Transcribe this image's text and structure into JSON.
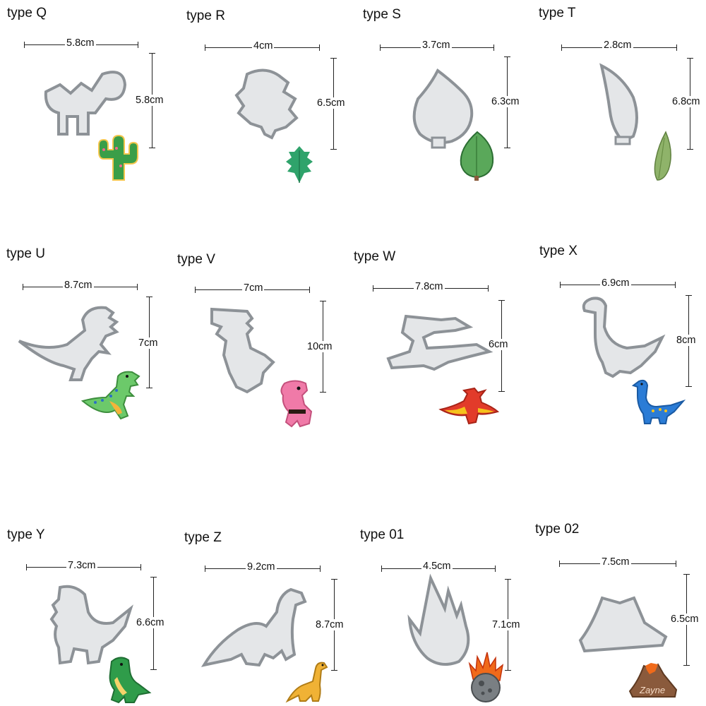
{
  "products": [
    {
      "id": "q",
      "type": "type Q",
      "width": "5.8cm",
      "height": "5.8cm",
      "icon": "cactus-icon"
    },
    {
      "id": "r",
      "type": "type R",
      "width": "4cm",
      "height": "6.5cm",
      "icon": "fern-leaf-icon"
    },
    {
      "id": "s",
      "type": "type S",
      "width": "3.7cm",
      "height": "6.3cm",
      "icon": "round-leaf-icon"
    },
    {
      "id": "t",
      "type": "type T",
      "width": "2.8cm",
      "height": "6.8cm",
      "icon": "slim-leaf-icon"
    },
    {
      "id": "u",
      "type": "type U",
      "width": "8.7cm",
      "height": "7cm",
      "icon": "t-rex-icon"
    },
    {
      "id": "v",
      "type": "type V",
      "width": "7cm",
      "height": "10cm",
      "icon": "pink-dino-icon"
    },
    {
      "id": "w",
      "type": "type W",
      "width": "7.8cm",
      "height": "6cm",
      "icon": "pterodactyl-icon"
    },
    {
      "id": "x",
      "type": "type X",
      "width": "6.9cm",
      "height": "8cm",
      "icon": "brontosaurus-icon"
    },
    {
      "id": "y",
      "type": "type Y",
      "width": "7.3cm",
      "height": "6.6cm",
      "icon": "green-dino-icon"
    },
    {
      "id": "z",
      "type": "type Z",
      "width": "9.2cm",
      "height": "8.7cm",
      "icon": "long-neck-dino-icon"
    },
    {
      "id": "01",
      "type": "type 01",
      "width": "4.5cm",
      "height": "7.1cm",
      "icon": "flaming-meteor-icon"
    },
    {
      "id": "02",
      "type": "type 02",
      "width": "7.5cm",
      "height": "6.5cm",
      "icon": "volcano-icon"
    }
  ],
  "volcano_cookie_text": "Zayne",
  "colors": {
    "steel": "#c9ccd0",
    "steel_dark": "#8d9297",
    "cactus_green": "#3a9e48",
    "fern_green": "#2fa36b",
    "leaf_green": "#5aa85a",
    "slim_leaf": "#8fb36a",
    "trex_green": "#6cc96a",
    "pink": "#f07aa8",
    "ptero_red": "#e23b2a",
    "ptero_yellow": "#f5c21b",
    "bronto_blue": "#2b7cd6",
    "dino_green": "#2f9c4a",
    "dino_yellow": "#f0b235",
    "flame_orange": "#f06a1a",
    "volcano_brown": "#8a5a3c"
  }
}
